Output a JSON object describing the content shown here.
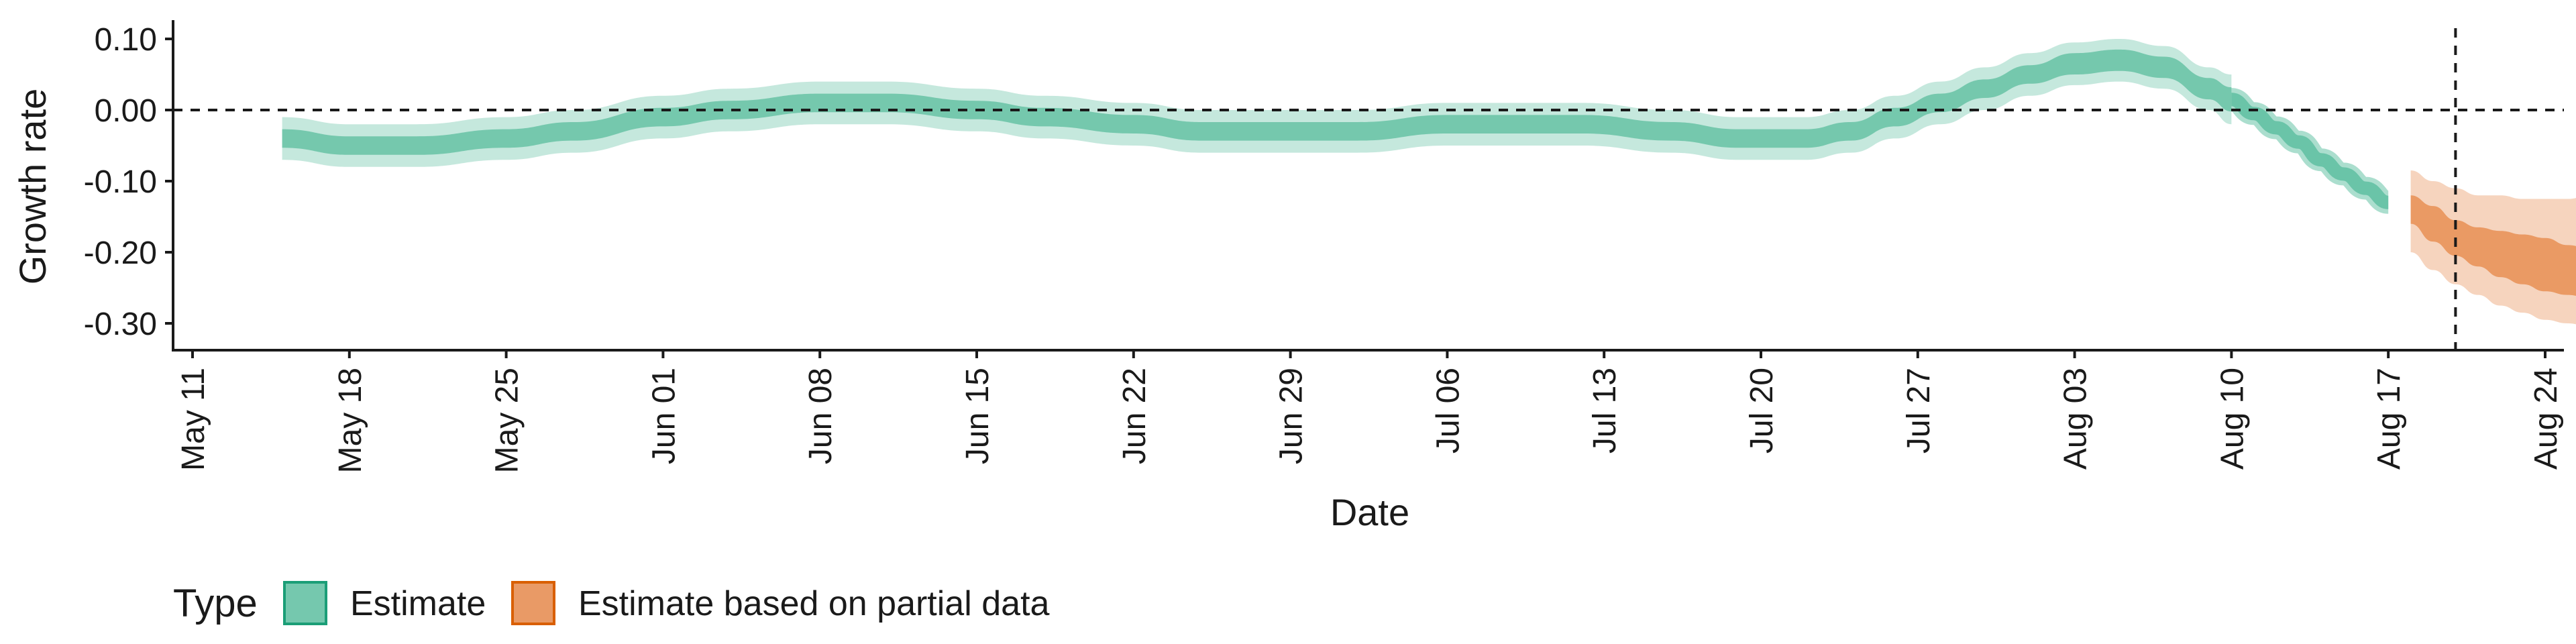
{
  "chart_data": {
    "type": "area",
    "title": "",
    "xlabel": "Date",
    "ylabel": "Growth rate",
    "ylim": [
      -0.34,
      0.125
    ],
    "yticks": [
      0.1,
      0.0,
      -0.1,
      -0.2,
      -0.3
    ],
    "ytick_labels": [
      "0.10",
      "0.00",
      "-0.10",
      "-0.20",
      "-0.30"
    ],
    "xlim_days": [
      0,
      105
    ],
    "xtick_days": [
      0,
      7,
      14,
      21,
      28,
      35,
      42,
      49,
      56,
      63,
      70,
      77,
      84,
      91,
      98,
      105
    ],
    "xtick_labels": [
      "May 11",
      "May 18",
      "May 25",
      "Jun 01",
      "Jun 08",
      "Jun 15",
      "Jun 22",
      "Jun 29",
      "Jul 06",
      "Jul 13",
      "Jul 20",
      "Jul 27",
      "Aug 03",
      "Aug 10",
      "Aug 17",
      "Aug 24"
    ],
    "x_day_origin": "May 11",
    "reference_lines": {
      "horizontal_y": 0.0,
      "vertical_day": 101
    },
    "grid": false,
    "legend": {
      "title": "Type",
      "placement": "bottom-left",
      "entries": [
        {
          "label": "Estimate",
          "color": "#66c2a5"
        },
        {
          "label": "Estimate based on partial data",
          "color": "#e78f55"
        }
      ]
    },
    "series": [
      {
        "name": "Estimate",
        "color": "#66c2a5",
        "x_days": [
          4,
          7,
          10,
          14,
          17,
          21,
          24,
          28,
          31,
          35,
          38,
          42,
          45,
          49,
          52,
          56,
          59,
          62,
          66,
          69,
          72,
          74,
          76,
          78,
          80,
          82,
          84,
          86,
          88,
          90,
          91
        ],
        "median": [
          -0.04,
          -0.05,
          -0.05,
          -0.04,
          -0.03,
          -0.01,
          0.0,
          0.01,
          0.01,
          0.0,
          -0.01,
          -0.02,
          -0.03,
          -0.03,
          -0.03,
          -0.02,
          -0.02,
          -0.02,
          -0.03,
          -0.04,
          -0.04,
          -0.03,
          -0.01,
          0.01,
          0.03,
          0.05,
          0.065,
          0.07,
          0.06,
          0.03,
          0.015
        ],
        "inner_lower": [
          -0.053,
          -0.063,
          -0.063,
          -0.053,
          -0.043,
          -0.023,
          -0.013,
          -0.003,
          -0.003,
          -0.013,
          -0.023,
          -0.033,
          -0.043,
          -0.043,
          -0.043,
          -0.033,
          -0.033,
          -0.033,
          -0.043,
          -0.053,
          -0.053,
          -0.043,
          -0.023,
          -0.003,
          0.017,
          0.037,
          0.05,
          0.055,
          0.045,
          0.015,
          -0.002
        ],
        "inner_upper": [
          -0.027,
          -0.037,
          -0.037,
          -0.027,
          -0.017,
          0.003,
          0.013,
          0.023,
          0.023,
          0.013,
          0.003,
          -0.007,
          -0.017,
          -0.017,
          -0.017,
          -0.007,
          -0.007,
          -0.007,
          -0.017,
          -0.027,
          -0.027,
          -0.017,
          0.003,
          0.023,
          0.043,
          0.063,
          0.08,
          0.085,
          0.075,
          0.045,
          0.032
        ],
        "outer_lower": [
          -0.07,
          -0.08,
          -0.08,
          -0.07,
          -0.06,
          -0.04,
          -0.03,
          -0.02,
          -0.02,
          -0.03,
          -0.04,
          -0.05,
          -0.06,
          -0.06,
          -0.06,
          -0.05,
          -0.05,
          -0.05,
          -0.06,
          -0.07,
          -0.07,
          -0.06,
          -0.04,
          -0.02,
          0.0,
          0.02,
          0.035,
          0.04,
          0.03,
          0.0,
          -0.02
        ],
        "outer_upper": [
          -0.01,
          -0.02,
          -0.02,
          -0.01,
          0.0,
          0.02,
          0.03,
          0.04,
          0.04,
          0.03,
          0.02,
          0.01,
          0.0,
          0.0,
          0.0,
          0.01,
          0.01,
          0.01,
          0.0,
          -0.01,
          -0.01,
          0.0,
          0.02,
          0.04,
          0.06,
          0.08,
          0.095,
          0.1,
          0.09,
          0.06,
          0.05
        ],
        "x_days_tail": [
          91,
          92,
          93,
          94,
          95,
          96,
          97,
          98
        ],
        "median_tail": [
          0.015,
          -0.005,
          -0.025,
          -0.045,
          -0.07,
          -0.09,
          -0.11,
          -0.13
        ]
      },
      {
        "name": "Estimate based on partial data",
        "color": "#e78f55",
        "x_days": [
          99,
          100,
          101,
          102,
          103,
          104,
          105,
          106,
          107,
          108,
          109,
          110
        ],
        "median": [
          -0.14,
          -0.16,
          -0.18,
          -0.19,
          -0.2,
          -0.21,
          -0.22,
          -0.225,
          -0.23,
          -0.23,
          -0.225,
          -0.225
        ],
        "inner_lower": [
          -0.16,
          -0.185,
          -0.205,
          -0.22,
          -0.235,
          -0.245,
          -0.255,
          -0.26,
          -0.265,
          -0.265,
          -0.26,
          -0.265
        ],
        "inner_upper": [
          -0.12,
          -0.135,
          -0.155,
          -0.165,
          -0.17,
          -0.175,
          -0.18,
          -0.19,
          -0.195,
          -0.195,
          -0.19,
          -0.185
        ],
        "outer_lower": [
          -0.2,
          -0.225,
          -0.245,
          -0.26,
          -0.275,
          -0.285,
          -0.295,
          -0.3,
          -0.305,
          -0.31,
          -0.31,
          -0.315
        ],
        "outer_upper": [
          -0.085,
          -0.1,
          -0.11,
          -0.12,
          -0.12,
          -0.125,
          -0.125,
          -0.125,
          -0.12,
          -0.12,
          -0.115,
          -0.115
        ]
      }
    ]
  }
}
